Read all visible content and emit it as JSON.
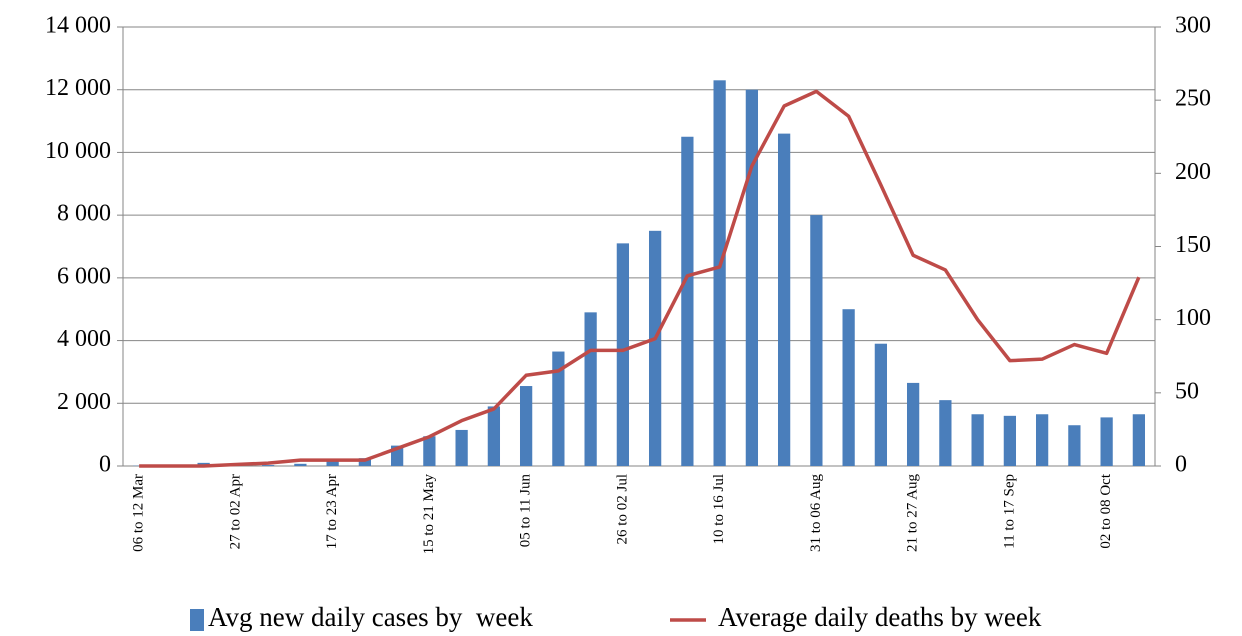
{
  "chart_data": {
    "type": "bar-line",
    "categories": [
      "06 to 12 Mar",
      null,
      null,
      "27 to 02 Apr",
      null,
      null,
      "17 to 23 Apr",
      null,
      null,
      "15 to 21 May",
      null,
      null,
      "05 to 11 Jun",
      null,
      null,
      "26 to 02 Jul",
      null,
      null,
      "10 to 16 Jul",
      null,
      null,
      "31 to 06 Aug",
      null,
      null,
      "21 to 27 Aug",
      null,
      null,
      "11 to 17 Sep",
      null,
      null,
      "02 to 08 Oct",
      null
    ],
    "series": [
      {
        "name": "Avg new daily cases by  week",
        "type": "bar",
        "color": "#4a7ebb",
        "axis": "y",
        "values": [
          10,
          20,
          100,
          50,
          30,
          70,
          200,
          250,
          650,
          950,
          1150,
          1900,
          2550,
          3650,
          4900,
          7100,
          7500,
          10500,
          12300,
          12000,
          10600,
          8000,
          5000,
          3900,
          2650,
          2100,
          1650,
          1600,
          1650,
          1300,
          1550,
          1650
        ]
      },
      {
        "name": "Average daily deaths by week",
        "type": "line",
        "color": "#be4b48",
        "axis": "y2",
        "values": [
          0,
          0,
          0,
          1,
          2,
          4,
          4,
          4,
          12,
          20,
          31,
          39,
          62,
          65,
          79,
          79,
          87,
          130,
          136,
          205,
          246,
          256,
          239,
          192,
          144,
          134,
          100,
          72,
          73,
          83,
          77,
          129
        ]
      }
    ],
    "ylim": [
      0,
      14000
    ],
    "yticks": [
      0,
      {
        "value": 2000,
        "label": "2 000"
      },
      {
        "value": 4000,
        "label": "4 000"
      },
      {
        "value": 6000,
        "label": "6 000"
      },
      {
        "value": 8000,
        "label": "8 000"
      },
      {
        "value": 10000,
        "label": "10 000"
      },
      {
        "value": 12000,
        "label": "12 000"
      },
      {
        "value": 14000,
        "label": "14 000"
      }
    ],
    "y2lim": [
      0,
      300
    ],
    "y2ticks": [
      0,
      50,
      100,
      150,
      200,
      250,
      300
    ],
    "grid": true,
    "legend": "bottom"
  }
}
